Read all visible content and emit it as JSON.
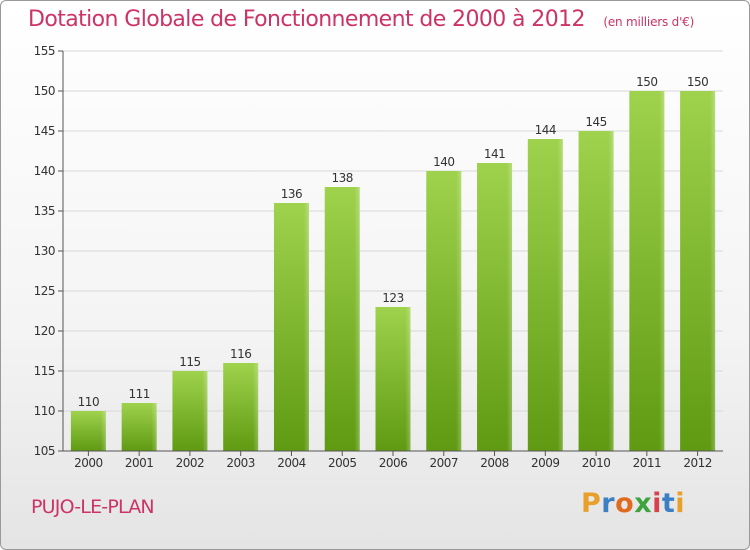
{
  "header": {
    "title": "Dotation Globale de Fonctionnement de 2000 à 2012",
    "subtitle": "(en milliers d'€)"
  },
  "footer": {
    "commune": "PUJO-LE-PLAN",
    "logo_letters": [
      "P",
      "r",
      "o",
      "x",
      "i",
      "t",
      "i"
    ]
  },
  "colors": {
    "title": "#cc3366",
    "bar_top": "#9fd24d",
    "bar_bottom": "#5f9a12",
    "gridline": "#d8d8d8",
    "axis": "#555555"
  },
  "chart_data": {
    "type": "bar",
    "title": "Dotation Globale de Fonctionnement de 2000 à 2012",
    "subtitle": "(en milliers d'€)",
    "xlabel": "",
    "ylabel": "",
    "categories": [
      "2000",
      "2001",
      "2002",
      "2003",
      "2004",
      "2005",
      "2006",
      "2007",
      "2008",
      "2009",
      "2010",
      "2011",
      "2012"
    ],
    "values": [
      110,
      111,
      115,
      116,
      136,
      138,
      123,
      140,
      141,
      144,
      145,
      150,
      150
    ],
    "ylim": [
      105,
      155
    ],
    "yticks": [
      105,
      110,
      115,
      120,
      125,
      130,
      135,
      140,
      145,
      150,
      155
    ],
    "grid": true,
    "legend": "none"
  }
}
